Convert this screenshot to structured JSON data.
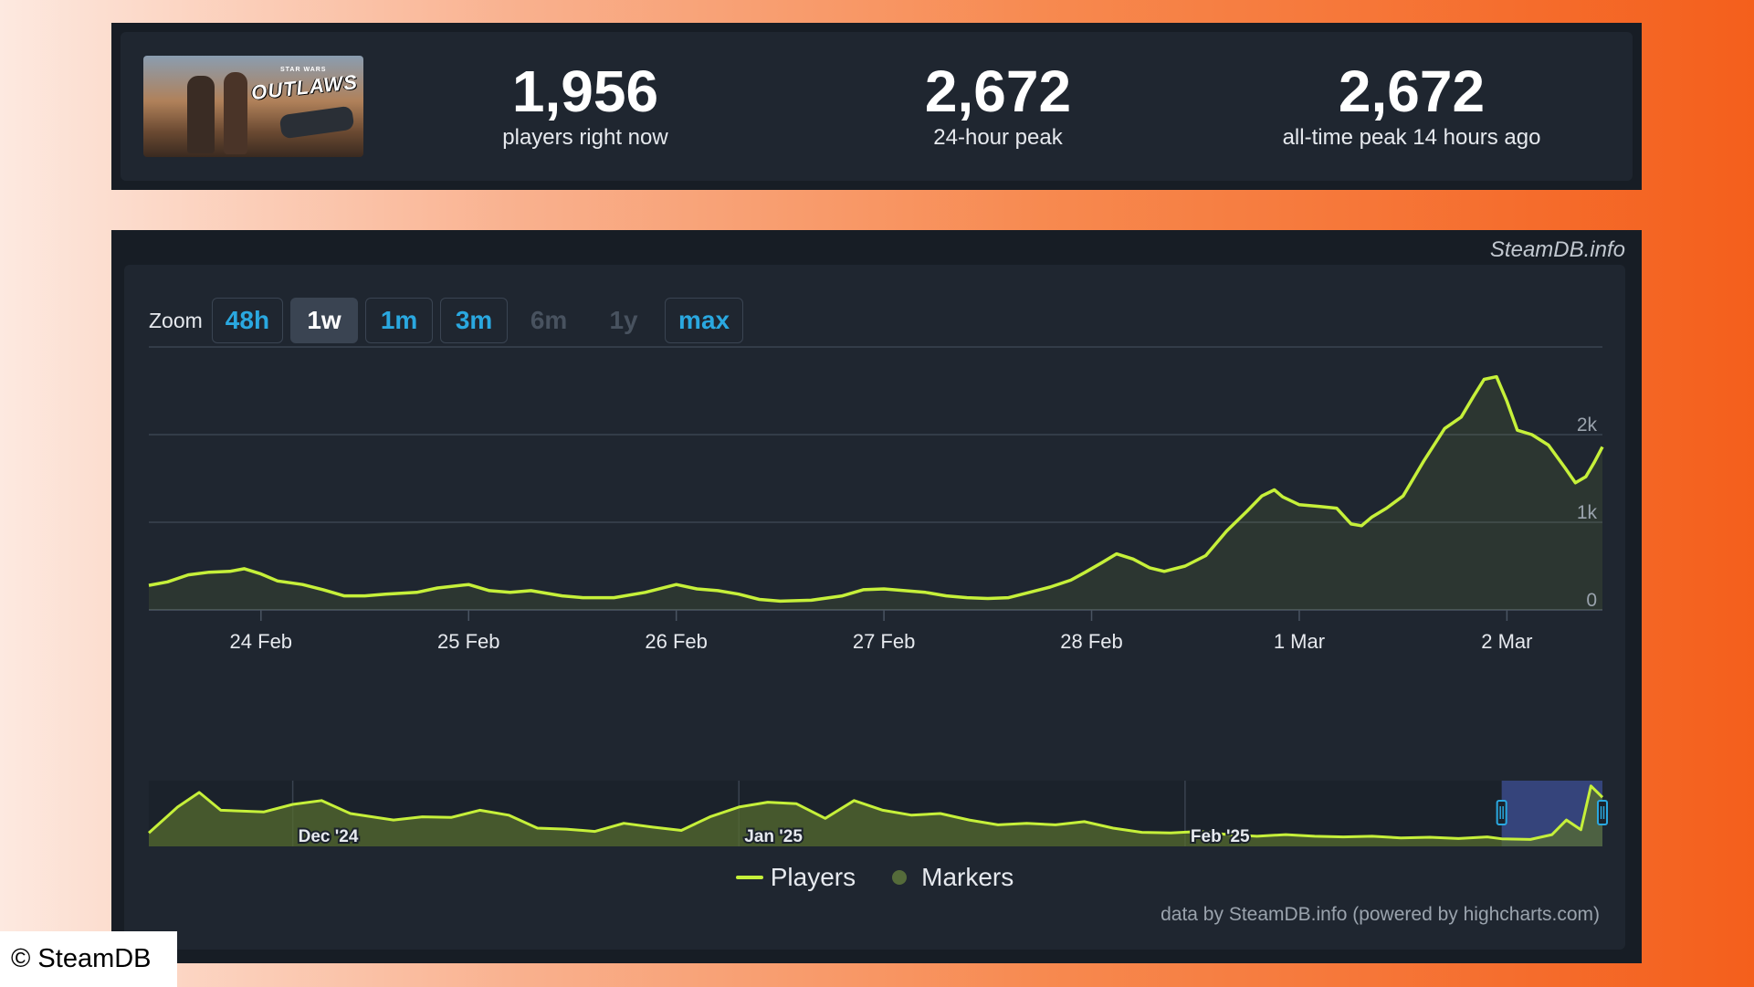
{
  "stats": {
    "game_logo_text": "OUTLAWS",
    "game_logo_subtext": "STAR WARS",
    "current": {
      "value": "1,956",
      "label": "players right now"
    },
    "peak24": {
      "value": "2,672",
      "label": "24-hour peak"
    },
    "alltime": {
      "value": "2,672",
      "label": "all-time peak 14 hours ago"
    }
  },
  "brand": "SteamDB.info",
  "zoom": {
    "label": "Zoom",
    "buttons": [
      {
        "label": "48h",
        "state": "normal"
      },
      {
        "label": "1w",
        "state": "active"
      },
      {
        "label": "1m",
        "state": "normal"
      },
      {
        "label": "3m",
        "state": "normal"
      },
      {
        "label": "6m",
        "state": "disabled"
      },
      {
        "label": "1y",
        "state": "disabled"
      },
      {
        "label": "max",
        "state": "normal"
      }
    ]
  },
  "legend": {
    "players": "Players",
    "markers": "Markers"
  },
  "credits": "data by SteamDB.info (powered by highcharts.com)",
  "copyright": "© SteamDB",
  "colors": {
    "line": "#c6f03a",
    "accent": "#2aa8e0",
    "navigator_selection": "#3a4a8a"
  },
  "chart_data": [
    {
      "type": "line",
      "title": "",
      "xlabel": "",
      "ylabel": "",
      "x_unit": "days since 23 Feb 00:00",
      "x_ticks": [
        {
          "x": 1,
          "label": "24 Feb"
        },
        {
          "x": 2,
          "label": "25 Feb"
        },
        {
          "x": 3,
          "label": "26 Feb"
        },
        {
          "x": 4,
          "label": "27 Feb"
        },
        {
          "x": 5,
          "label": "28 Feb"
        },
        {
          "x": 6,
          "label": "1 Mar"
        },
        {
          "x": 7,
          "label": "2 Mar"
        }
      ],
      "xlim": [
        0.46,
        7.46
      ],
      "y_ticks": [
        {
          "y": 0,
          "label": "0"
        },
        {
          "y": 1000,
          "label": "1k"
        },
        {
          "y": 2000,
          "label": "2k"
        }
      ],
      "ylim": [
        0,
        3000
      ],
      "grid": true,
      "series": [
        {
          "name": "Players",
          "points": [
            [
              0.46,
              280
            ],
            [
              0.55,
              320
            ],
            [
              0.65,
              400
            ],
            [
              0.75,
              430
            ],
            [
              0.85,
              440
            ],
            [
              0.92,
              470
            ],
            [
              1.0,
              410
            ],
            [
              1.08,
              330
            ],
            [
              1.2,
              290
            ],
            [
              1.3,
              230
            ],
            [
              1.4,
              160
            ],
            [
              1.5,
              160
            ],
            [
              1.6,
              180
            ],
            [
              1.75,
              200
            ],
            [
              1.85,
              250
            ],
            [
              2.0,
              290
            ],
            [
              2.1,
              220
            ],
            [
              2.2,
              200
            ],
            [
              2.3,
              220
            ],
            [
              2.45,
              160
            ],
            [
              2.55,
              140
            ],
            [
              2.7,
              140
            ],
            [
              2.85,
              200
            ],
            [
              3.0,
              290
            ],
            [
              3.1,
              240
            ],
            [
              3.2,
              220
            ],
            [
              3.3,
              180
            ],
            [
              3.4,
              120
            ],
            [
              3.5,
              100
            ],
            [
              3.65,
              110
            ],
            [
              3.8,
              160
            ],
            [
              3.9,
              230
            ],
            [
              4.0,
              240
            ],
            [
              4.1,
              220
            ],
            [
              4.2,
              200
            ],
            [
              4.3,
              160
            ],
            [
              4.4,
              140
            ],
            [
              4.5,
              130
            ],
            [
              4.6,
              140
            ],
            [
              4.7,
              200
            ],
            [
              4.8,
              260
            ],
            [
              4.9,
              340
            ],
            [
              4.97,
              430
            ],
            [
              5.05,
              540
            ],
            [
              5.12,
              640
            ],
            [
              5.2,
              580
            ],
            [
              5.28,
              480
            ],
            [
              5.35,
              440
            ],
            [
              5.45,
              500
            ],
            [
              5.55,
              620
            ],
            [
              5.65,
              900
            ],
            [
              5.75,
              1130
            ],
            [
              5.82,
              1300
            ],
            [
              5.88,
              1370
            ],
            [
              5.92,
              1290
            ],
            [
              6.0,
              1200
            ],
            [
              6.1,
              1180
            ],
            [
              6.18,
              1160
            ],
            [
              6.25,
              980
            ],
            [
              6.3,
              960
            ],
            [
              6.35,
              1060
            ],
            [
              6.42,
              1160
            ],
            [
              6.5,
              1300
            ],
            [
              6.6,
              1700
            ],
            [
              6.7,
              2070
            ],
            [
              6.78,
              2200
            ],
            [
              6.84,
              2440
            ],
            [
              6.89,
              2630
            ],
            [
              6.95,
              2660
            ],
            [
              7.0,
              2380
            ],
            [
              7.05,
              2050
            ],
            [
              7.12,
              2000
            ],
            [
              7.2,
              1880
            ],
            [
              7.28,
              1620
            ],
            [
              7.33,
              1450
            ],
            [
              7.38,
              1520
            ],
            [
              7.42,
              1680
            ],
            [
              7.46,
              1860
            ]
          ]
        }
      ]
    },
    {
      "type": "area",
      "title": "",
      "xlabel": "",
      "ylabel": "",
      "x_unit": "days since 18 Nov 2024",
      "x_ticks": [
        {
          "x": 13,
          "label": "Dec '24"
        },
        {
          "x": 44,
          "label": "Jan '25"
        },
        {
          "x": 75,
          "label": "Feb '25"
        }
      ],
      "xlim": [
        3,
        104
      ],
      "selected_range": [
        97,
        104
      ],
      "series": [
        {
          "name": "Players",
          "points": [
            [
              3,
              300
            ],
            [
              5,
              1100
            ],
            [
              6.5,
              1550
            ],
            [
              8,
              1000
            ],
            [
              11,
              950
            ],
            [
              13,
              1180
            ],
            [
              15,
              1300
            ],
            [
              17,
              900
            ],
            [
              20,
              700
            ],
            [
              22,
              800
            ],
            [
              24,
              780
            ],
            [
              26,
              1000
            ],
            [
              28,
              850
            ],
            [
              30,
              450
            ],
            [
              32,
              420
            ],
            [
              34,
              350
            ],
            [
              36,
              600
            ],
            [
              38,
              480
            ],
            [
              40,
              380
            ],
            [
              42,
              800
            ],
            [
              44,
              1100
            ],
            [
              46,
              1250
            ],
            [
              48,
              1200
            ],
            [
              50,
              750
            ],
            [
              52,
              1300
            ],
            [
              54,
              1000
            ],
            [
              56,
              850
            ],
            [
              58,
              900
            ],
            [
              60,
              700
            ],
            [
              62,
              550
            ],
            [
              64,
              600
            ],
            [
              66,
              550
            ],
            [
              68,
              650
            ],
            [
              70,
              450
            ],
            [
              72,
              320
            ],
            [
              74,
              300
            ],
            [
              76,
              350
            ],
            [
              78,
              250
            ],
            [
              80,
              200
            ],
            [
              82,
              250
            ],
            [
              84,
              200
            ],
            [
              86,
              180
            ],
            [
              88,
              200
            ],
            [
              90,
              150
            ],
            [
              92,
              170
            ],
            [
              94,
              130
            ],
            [
              96,
              180
            ],
            [
              97,
              120
            ],
            [
              99,
              100
            ],
            [
              100.5,
              250
            ],
            [
              101.5,
              700
            ],
            [
              102.5,
              400
            ],
            [
              103.2,
              1750
            ],
            [
              104,
              1400
            ]
          ]
        }
      ]
    }
  ]
}
